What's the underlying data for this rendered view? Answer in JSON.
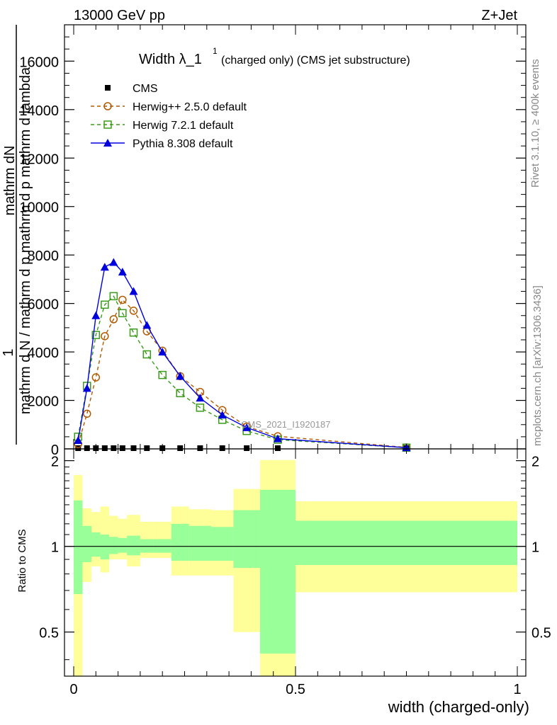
{
  "header": {
    "left": "13000 GeV pp",
    "right": "Z+Jet"
  },
  "side_text": {
    "rivet": "Rivet 3.1.10, ≥ 400k events",
    "mcplots": "mcplots.cern.ch [arXiv:1306.3436]"
  },
  "chart_data": [
    {
      "type": "scatter",
      "title_main": "Width λ_1",
      "title_sup": "1",
      "title_rest": "(charged only) (CMS jet substructure)",
      "ylabel_top": "1",
      "ylabel_num": "mathrm dN",
      "ylabel_den": "mathrm d N / mathrm d p mathrm d p mathrm d lambda",
      "ylabel_den2": "mathrm d N / mathrm d p mathrm d p mathrm d lambda",
      "xlim": [
        0,
        1
      ],
      "ylim": [
        0,
        17500
      ],
      "yticks": [
        0,
        2000,
        4000,
        6000,
        8000,
        10000,
        12000,
        14000,
        16000
      ],
      "ytick_labels": [
        "0",
        "2000",
        "4000",
        "6000",
        "8000",
        "10000",
        "12000",
        "14000",
        "16000"
      ],
      "watermark": "CMS_2021_I1920187",
      "legend": [
        {
          "name": "CMS",
          "marker": "square-filled",
          "color": "#000000"
        },
        {
          "name": "Herwig++ 2.5.0 default",
          "marker": "circle-open",
          "color": "#b35900"
        },
        {
          "name": "Herwig 7.2.1 default",
          "marker": "square-open",
          "color": "#3a9a1a"
        },
        {
          "name": "Pythia 8.308 default",
          "marker": "triangle-filled",
          "color": "#0000dd"
        }
      ],
      "x": [
        0.01,
        0.03,
        0.05,
        0.07,
        0.09,
        0.11,
        0.135,
        0.165,
        0.2,
        0.24,
        0.285,
        0.335,
        0.39,
        0.46,
        0.75
      ],
      "series": [
        {
          "name": "CMS",
          "values": [
            0,
            0,
            0,
            0,
            0,
            0,
            0,
            0,
            0,
            0,
            0,
            0,
            0,
            0,
            0
          ]
        },
        {
          "name": "Herwig++ 2.5.0 default",
          "values": [
            200,
            1450,
            2950,
            4650,
            5350,
            6150,
            5700,
            4850,
            4050,
            3000,
            2350,
            1600,
            920,
            520,
            60
          ]
        },
        {
          "name": "Herwig 7.2.1 default",
          "values": [
            500,
            2600,
            4700,
            5950,
            6300,
            5600,
            4800,
            3900,
            3050,
            2300,
            1700,
            1200,
            740,
            380,
            50
          ]
        },
        {
          "name": "Pythia 8.308 default",
          "values": [
            350,
            2500,
            5500,
            7500,
            7700,
            7300,
            6500,
            5100,
            4000,
            3000,
            2100,
            1400,
            880,
            420,
            50
          ]
        }
      ]
    },
    {
      "type": "area",
      "ylabel": "Ratio to CMS",
      "xlabel": "width (charged-only)",
      "xlim": [
        0,
        1
      ],
      "ylim": [
        0.35,
        2.2
      ],
      "yticks": [
        0.5,
        1,
        2
      ],
      "ytick_labels": [
        "0.5",
        "1",
        "2"
      ],
      "xticks": [
        0,
        0.5,
        1
      ],
      "xtick_labels": [
        "0",
        "0.5",
        "1"
      ],
      "bins": [
        {
          "x0": 0.0,
          "x1": 0.02,
          "y_lo": 0.35,
          "y_hi": 1.78,
          "g_lo": 0.68,
          "g_hi": 1.45
        },
        {
          "x0": 0.02,
          "x1": 0.04,
          "y_lo": 0.75,
          "y_hi": 1.36,
          "g_lo": 0.88,
          "g_hi": 1.18
        },
        {
          "x0": 0.04,
          "x1": 0.06,
          "y_lo": 0.85,
          "y_hi": 1.32,
          "g_lo": 0.92,
          "g_hi": 1.12
        },
        {
          "x0": 0.06,
          "x1": 0.08,
          "y_lo": 0.81,
          "y_hi": 1.38,
          "g_lo": 0.9,
          "g_hi": 1.1
        },
        {
          "x0": 0.08,
          "x1": 0.1,
          "y_lo": 0.9,
          "y_hi": 1.28,
          "g_lo": 0.94,
          "g_hi": 1.08
        },
        {
          "x0": 0.1,
          "x1": 0.12,
          "y_lo": 0.9,
          "y_hi": 1.25,
          "g_lo": 0.95,
          "g_hi": 1.07
        },
        {
          "x0": 0.12,
          "x1": 0.15,
          "y_lo": 0.85,
          "y_hi": 1.29,
          "g_lo": 0.93,
          "g_hi": 1.09
        },
        {
          "x0": 0.15,
          "x1": 0.18,
          "y_lo": 0.91,
          "y_hi": 1.22,
          "g_lo": 0.95,
          "g_hi": 1.06
        },
        {
          "x0": 0.18,
          "x1": 0.22,
          "y_lo": 0.91,
          "y_hi": 1.22,
          "g_lo": 0.95,
          "g_hi": 1.06
        },
        {
          "x0": 0.22,
          "x1": 0.26,
          "y_lo": 0.79,
          "y_hi": 1.38,
          "g_lo": 0.89,
          "g_hi": 1.2
        },
        {
          "x0": 0.26,
          "x1": 0.31,
          "y_lo": 0.79,
          "y_hi": 1.35,
          "g_lo": 0.89,
          "g_hi": 1.18
        },
        {
          "x0": 0.31,
          "x1": 0.36,
          "y_lo": 0.79,
          "y_hi": 1.34,
          "g_lo": 0.89,
          "g_hi": 1.17
        },
        {
          "x0": 0.36,
          "x1": 0.42,
          "y_lo": 0.5,
          "y_hi": 1.59,
          "g_lo": 0.84,
          "g_hi": 1.34
        },
        {
          "x0": 0.42,
          "x1": 0.5,
          "y_lo": 0.35,
          "y_hi": 2.01,
          "g_lo": 0.42,
          "g_hi": 1.58
        },
        {
          "x0": 0.5,
          "x1": 1.0,
          "y_lo": 0.69,
          "y_hi": 1.44,
          "g_lo": 0.86,
          "g_hi": 1.23
        }
      ]
    }
  ]
}
